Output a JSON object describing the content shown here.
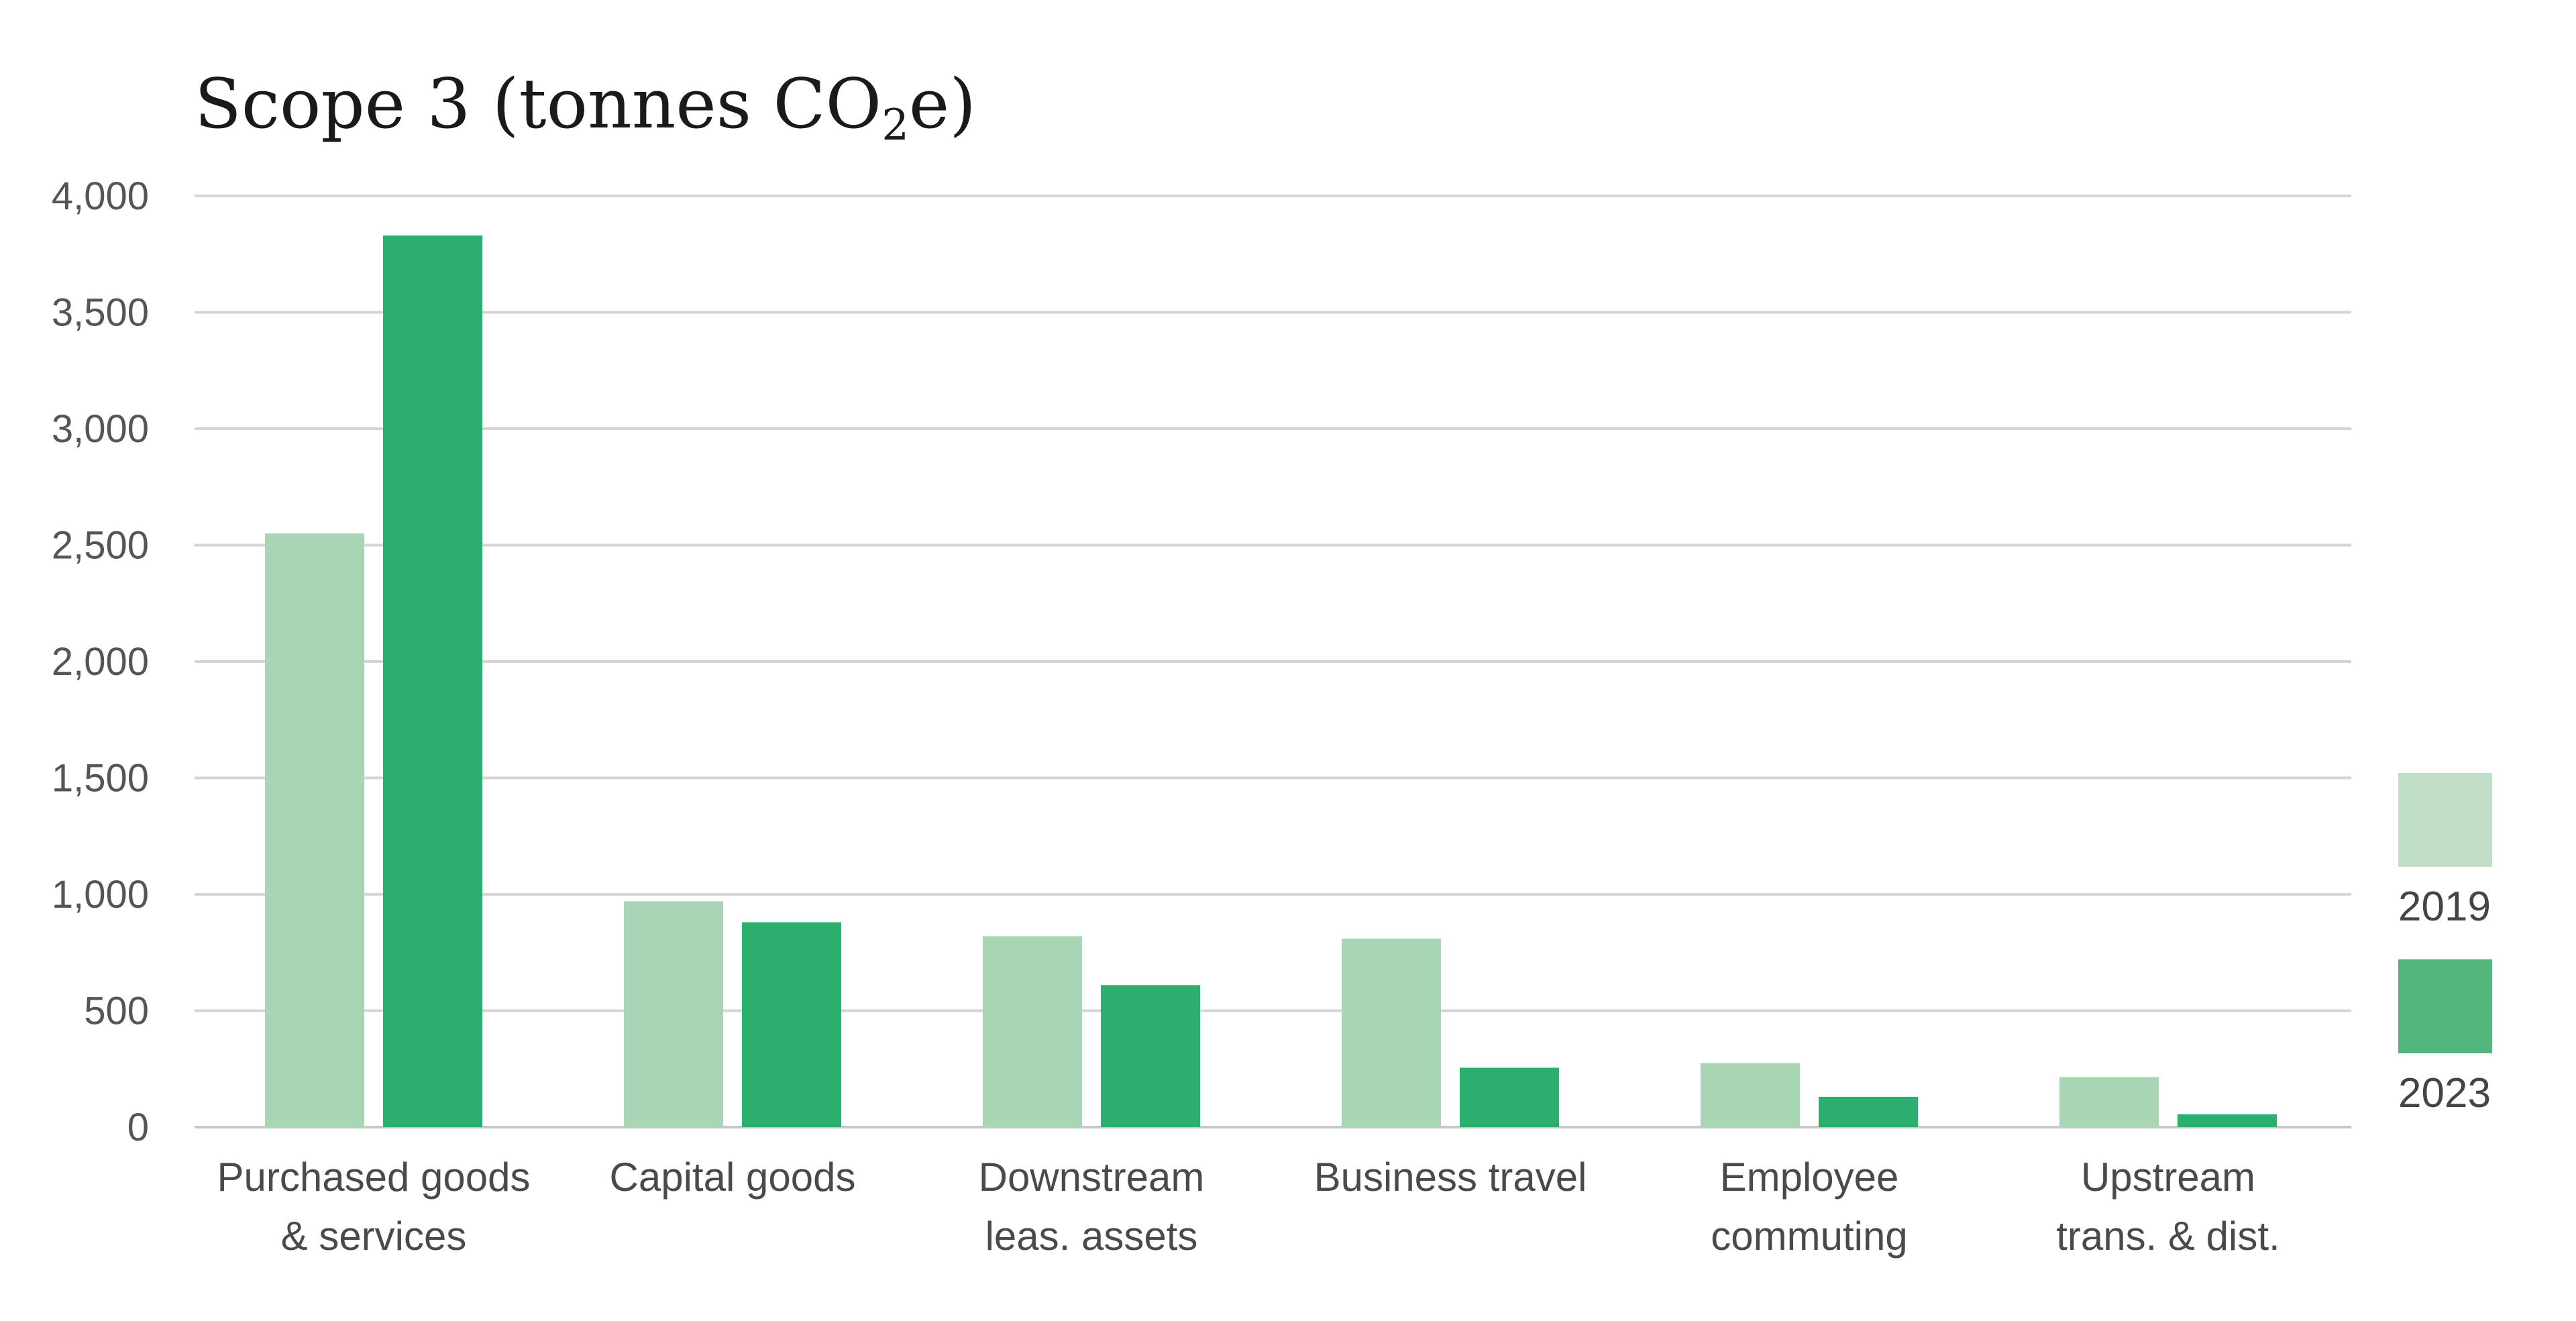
{
  "chart_data": {
    "type": "bar",
    "title": "Scope 3 (tonnes CO",
    "title_subscript": "2",
    "title_suffix": "e)",
    "categories": [
      [
        "Purchased goods",
        "& services"
      ],
      [
        "Capital goods"
      ],
      [
        "Downstream",
        "leas. assets"
      ],
      [
        "Business travel"
      ],
      [
        "Employee",
        "commuting"
      ],
      [
        "Upstream",
        "trans. & dist."
      ]
    ],
    "series": [
      {
        "name": "2019",
        "color": "#a8d5b3",
        "values": [
          2550,
          970,
          820,
          810,
          275,
          215
        ]
      },
      {
        "name": "2023",
        "color": "#2bae6e",
        "values": [
          3830,
          880,
          610,
          255,
          130,
          55
        ]
      }
    ],
    "ylim": [
      0,
      4000
    ],
    "yticks": [
      0,
      500,
      1000,
      1500,
      2000,
      2500,
      3000,
      3500,
      4000
    ],
    "ytick_labels": [
      "0",
      "500",
      "1,000",
      "1,500",
      "2,000",
      "2,500",
      "3,000",
      "3,500",
      "4,000"
    ],
    "grid": true,
    "legend_position": "right",
    "legend": [
      {
        "label": "2019",
        "color": "#bfe0c7"
      },
      {
        "label": "2023",
        "color": "#52b57c"
      }
    ]
  }
}
